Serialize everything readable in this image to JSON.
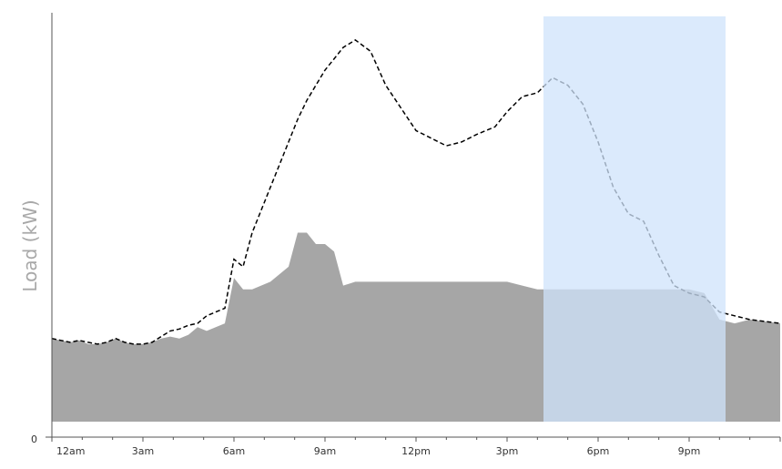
{
  "chart_data": {
    "type": "area",
    "title": "",
    "xlabel": "",
    "ylabel": "Load (kW)",
    "ytick_labels": [
      "0"
    ],
    "xticks": [
      {
        "hour": 0,
        "label": "12am"
      },
      {
        "hour": 3,
        "label": "3am"
      },
      {
        "hour": 6,
        "label": "6am"
      },
      {
        "hour": 9,
        "label": "9am"
      },
      {
        "hour": 12,
        "label": "12pm"
      },
      {
        "hour": 15,
        "label": "3pm"
      },
      {
        "hour": 18,
        "label": "6pm"
      },
      {
        "hour": 21,
        "label": "9pm"
      }
    ],
    "xlim": [
      0,
      24
    ],
    "ylim": [
      0,
      100
    ],
    "grid": false,
    "legend": "none",
    "highlight_range": {
      "from": 16.2,
      "to": 22.2,
      "color": "#cfe3fb"
    },
    "series": [
      {
        "style": "area",
        "color": "#a6a6a6",
        "x": [
          0,
          0.3,
          0.6,
          0.9,
          1.2,
          1.5,
          1.8,
          2.1,
          2.4,
          2.7,
          3.0,
          3.3,
          3.6,
          3.9,
          4.2,
          4.5,
          4.8,
          5.1,
          5.4,
          5.7,
          6.0,
          6.3,
          6.6,
          7.2,
          7.8,
          8.1,
          8.4,
          8.7,
          9.0,
          9.3,
          9.6,
          10.0,
          12.0,
          15.0,
          15.5,
          16.0,
          18.0,
          21.0,
          21.5,
          22.0,
          22.5,
          23.0,
          23.5,
          24.0
        ],
        "y": [
          22,
          21.5,
          21,
          21.5,
          20.5,
          20.5,
          21,
          22,
          21,
          20.5,
          20.5,
          21,
          22,
          22.5,
          22,
          23,
          25,
          24,
          25,
          26,
          38,
          35,
          35,
          37,
          41,
          50,
          50,
          47,
          47,
          45,
          36,
          37,
          37,
          37,
          36,
          35,
          35,
          35,
          34,
          27,
          26,
          27,
          26.5,
          26
        ]
      },
      {
        "style": "dashed-line",
        "color": "#000000",
        "x": [
          0,
          0.3,
          0.6,
          0.9,
          1.2,
          1.5,
          1.8,
          2.1,
          2.4,
          2.7,
          3.0,
          3.3,
          3.6,
          3.9,
          4.2,
          4.5,
          4.8,
          5.1,
          5.4,
          5.7,
          6.0,
          6.3,
          6.6,
          7.2,
          7.8,
          8.1,
          8.4,
          8.7,
          9.0,
          9.3,
          9.6,
          10.0,
          10.5,
          11.0,
          12.0,
          13.0,
          13.5,
          14.0,
          14.3,
          14.6,
          15.0,
          15.5,
          16.0,
          16.5,
          17.0,
          17.5,
          18.0,
          18.5,
          19.0,
          19.5,
          20.0,
          20.5,
          21.0,
          21.5,
          22.0,
          22.5,
          23.0,
          23.5,
          24.0
        ],
        "y": [
          22,
          21.5,
          21,
          21.5,
          21,
          20.5,
          21,
          22,
          21,
          20.5,
          20.5,
          21,
          22.5,
          24,
          24.5,
          25.5,
          26,
          28,
          29,
          30,
          43,
          41,
          50,
          62,
          74,
          80,
          85,
          89,
          93,
          96,
          99,
          101,
          98,
          89,
          77,
          73,
          74,
          76,
          77,
          78,
          82,
          86,
          87,
          91,
          89,
          84,
          74,
          62,
          55,
          53,
          44,
          36,
          34,
          33,
          29,
          28,
          27,
          26.5,
          26
        ]
      }
    ]
  }
}
